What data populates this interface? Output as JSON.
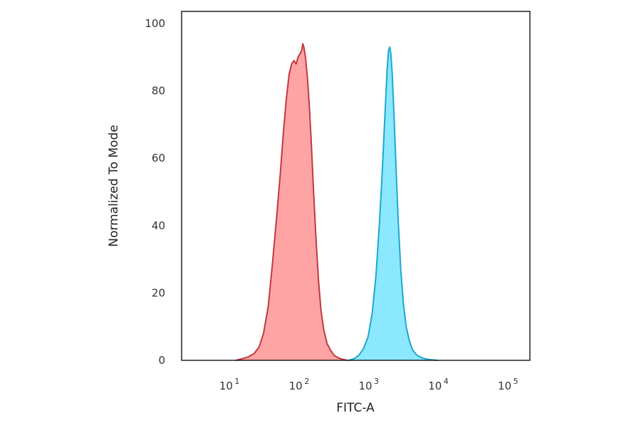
{
  "chart_data": {
    "type": "area",
    "xlabel": "FITC-A",
    "ylabel": "Normalized To Mode",
    "x_scale": "log",
    "xlim": [
      2,
      200000
    ],
    "ylim": [
      0,
      100
    ],
    "y_ticks": [
      "0",
      "20",
      "40",
      "60",
      "80",
      "100"
    ],
    "x_ticks": [
      {
        "base": "10",
        "exp": "1",
        "value": 10
      },
      {
        "base": "10",
        "exp": "2",
        "value": 100
      },
      {
        "base": "10",
        "exp": "3",
        "value": 1000
      },
      {
        "base": "10",
        "exp": "4",
        "value": 10000
      },
      {
        "base": "10",
        "exp": "5",
        "value": 100000
      }
    ],
    "grid": false,
    "legend": "none",
    "series": [
      {
        "fill": "#ff9a9a",
        "stroke": "#c0393f",
        "points": [
          [
            12,
            0
          ],
          [
            15,
            0.5
          ],
          [
            18,
            1
          ],
          [
            22,
            2
          ],
          [
            26,
            4
          ],
          [
            30,
            8
          ],
          [
            35,
            16
          ],
          [
            40,
            28
          ],
          [
            46,
            42
          ],
          [
            52,
            55
          ],
          [
            58,
            68
          ],
          [
            64,
            78
          ],
          [
            70,
            85
          ],
          [
            76,
            88
          ],
          [
            82,
            89
          ],
          [
            88,
            88
          ],
          [
            94,
            90
          ],
          [
            100,
            91
          ],
          [
            106,
            92
          ],
          [
            110,
            94
          ],
          [
            114,
            93
          ],
          [
            120,
            90
          ],
          [
            128,
            84
          ],
          [
            137,
            75
          ],
          [
            146,
            64
          ],
          [
            157,
            50
          ],
          [
            170,
            36
          ],
          [
            184,
            24
          ],
          [
            200,
            15
          ],
          [
            220,
            9
          ],
          [
            245,
            5
          ],
          [
            275,
            3
          ],
          [
            310,
            1.5
          ],
          [
            350,
            0.8
          ],
          [
            410,
            0.3
          ],
          [
            480,
            0
          ]
        ]
      },
      {
        "fill": "#7fe6ff",
        "stroke": "#1ca9cf",
        "points": [
          [
            500,
            0
          ],
          [
            600,
            0.5
          ],
          [
            700,
            1.5
          ],
          [
            820,
            3.5
          ],
          [
            950,
            7
          ],
          [
            1090,
            14
          ],
          [
            1230,
            25
          ],
          [
            1380,
            40
          ],
          [
            1520,
            56
          ],
          [
            1660,
            73
          ],
          [
            1780,
            86
          ],
          [
            1870,
            92
          ],
          [
            1950,
            93
          ],
          [
            2020,
            91
          ],
          [
            2110,
            85
          ],
          [
            2240,
            73
          ],
          [
            2400,
            57
          ],
          [
            2580,
            41
          ],
          [
            2800,
            27
          ],
          [
            3050,
            17
          ],
          [
            3350,
            10
          ],
          [
            3700,
            6
          ],
          [
            4150,
            3
          ],
          [
            4800,
            1.5
          ],
          [
            5700,
            0.7
          ],
          [
            6900,
            0.3
          ],
          [
            8300,
            0.1
          ],
          [
            9500,
            0
          ]
        ]
      }
    ]
  }
}
